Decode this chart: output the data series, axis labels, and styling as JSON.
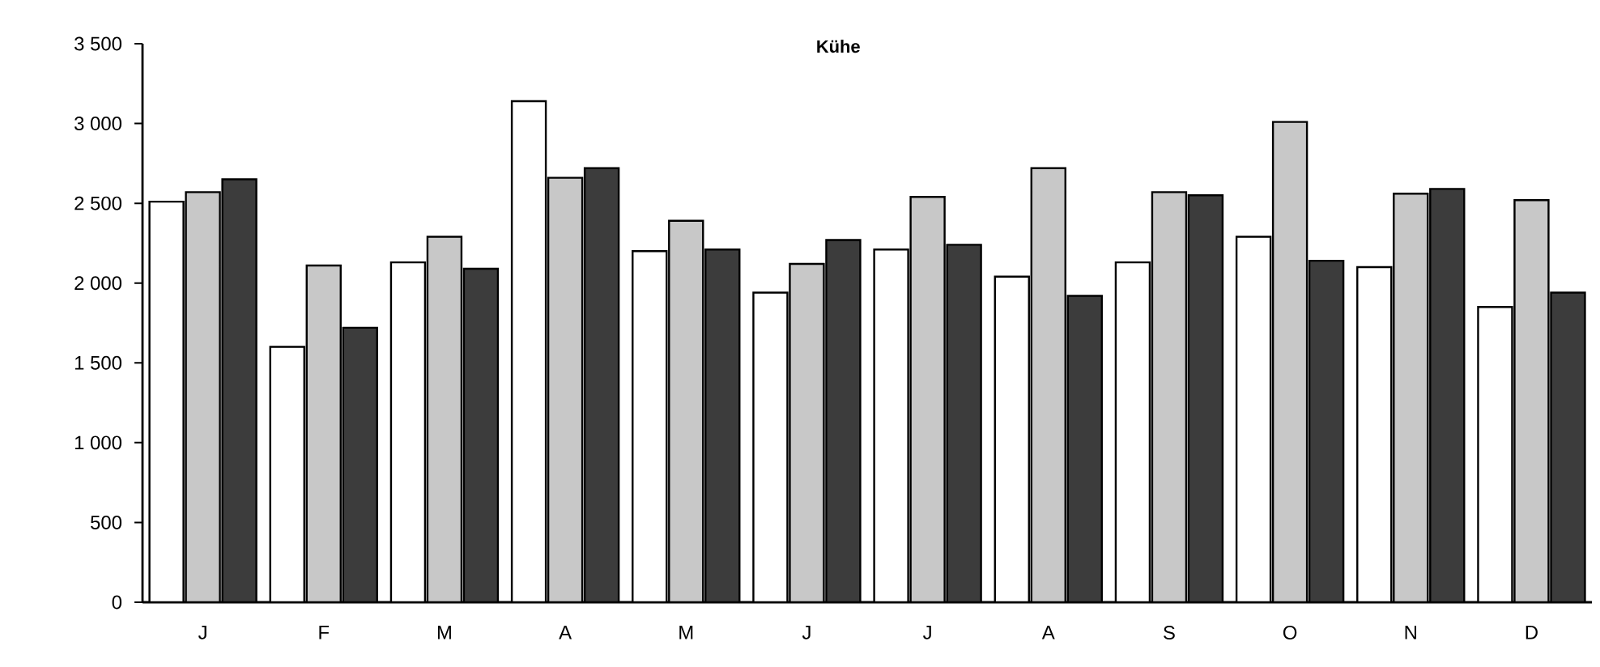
{
  "chart_data": {
    "type": "bar",
    "title": "Kühe",
    "categories": [
      "J",
      "F",
      "M",
      "A",
      "M",
      "J",
      "J",
      "A",
      "S",
      "O",
      "N",
      "D"
    ],
    "series": [
      {
        "color": "#ffffff",
        "values": [
          2510,
          1600,
          2130,
          3140,
          2200,
          1940,
          2210,
          2040,
          2130,
          2290,
          2100,
          1850
        ]
      },
      {
        "color": "#c8c8c8",
        "values": [
          2570,
          2110,
          2290,
          2660,
          2390,
          2120,
          2540,
          2720,
          2570,
          3010,
          2560,
          2520
        ]
      },
      {
        "color": "#3c3c3c",
        "values": [
          2650,
          1720,
          2090,
          2720,
          2210,
          2270,
          2240,
          1920,
          2550,
          2140,
          2590,
          1940
        ]
      }
    ],
    "ylim": [
      0,
      3500
    ],
    "yticks": [
      0,
      500,
      {
        "value": 1000,
        "label": "1 000"
      },
      {
        "value": 1500,
        "label": "1 500"
      },
      {
        "value": 2000,
        "label": "2 000"
      },
      {
        "value": 2500,
        "label": "2 500"
      },
      {
        "value": 3000,
        "label": "3 000"
      },
      {
        "value": 3500,
        "label": "3 500"
      }
    ],
    "ylabel": null
  }
}
